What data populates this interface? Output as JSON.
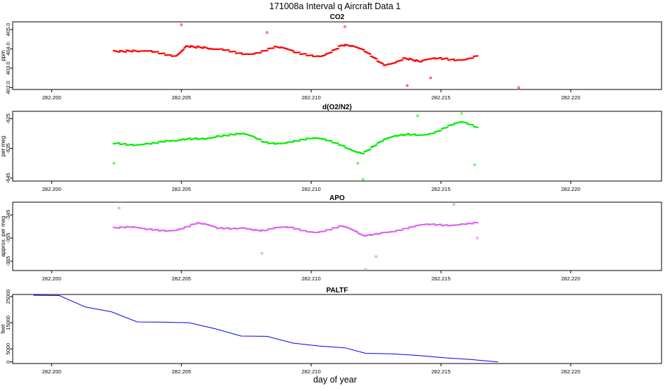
{
  "figure": {
    "title": "171008a   Interval q Aircraft Data 1",
    "xlabel": "day of year"
  },
  "chart_data": [
    {
      "id": "co2",
      "type": "scatter",
      "title": "CO2",
      "ylabel": "ppm",
      "color": "#ff0000",
      "xlim": [
        282.1985,
        282.2235
      ],
      "ylim": [
        401.9,
        405.4
      ],
      "xticks": [
        282.2,
        282.205,
        282.21,
        282.215,
        282.22
      ],
      "xtick_labels": [
        "282.200",
        "282.205",
        "282.210",
        "282.215",
        "282.220"
      ],
      "yticks": [
        402.0,
        403.0,
        404.0,
        405.0
      ],
      "ytick_labels": [
        "402.0",
        "403.0",
        "404.0",
        "405.0"
      ],
      "series": {
        "name": "CO2 (ppm)",
        "x_start": 282.2024,
        "x_end": 282.2164,
        "n_points": 340,
        "level_profile": [
          [
            282.2024,
            404.05
          ],
          [
            282.2034,
            403.7
          ],
          [
            282.2048,
            403.8
          ],
          [
            282.2052,
            404.3
          ],
          [
            282.2062,
            403.8
          ],
          [
            282.2076,
            403.9
          ],
          [
            282.2086,
            404.0
          ],
          [
            282.2094,
            403.7
          ],
          [
            282.2104,
            403.8
          ],
          [
            282.2112,
            404.15
          ],
          [
            282.212,
            403.8
          ],
          [
            282.2128,
            403.3
          ],
          [
            282.2136,
            403.6
          ],
          [
            282.2142,
            403.2
          ],
          [
            282.2152,
            403.5
          ],
          [
            282.2164,
            403.7
          ]
        ],
        "scatter": 0.42,
        "outliers": [
          {
            "x": 282.2137,
            "y": 402.1
          },
          {
            "x": 282.2113,
            "y": 405.15
          },
          {
            "x": 282.205,
            "y": 405.25
          },
          {
            "x": 282.2083,
            "y": 404.85
          },
          {
            "x": 282.2146,
            "y": 402.5
          },
          {
            "x": 282.218,
            "y": 402.0
          }
        ]
      }
    },
    {
      "id": "do2n2",
      "type": "scatter",
      "title": "d(O2/N2)",
      "ylabel": "per meg",
      "color": "#00ee00",
      "xlim": [
        282.1985,
        282.2235
      ],
      "ylim": [
        -646,
        -622.5
      ],
      "xticks": [
        282.2,
        282.205,
        282.21,
        282.215,
        282.22
      ],
      "xtick_labels": [
        "282.200",
        "282.205",
        "282.210",
        "282.215",
        "282.220"
      ],
      "yticks": [
        -645,
        -635,
        -625
      ],
      "ytick_labels": [
        "-645",
        "-635",
        "-625"
      ],
      "series": {
        "name": "d(O2/N2) (per meg)",
        "x_start": 282.2024,
        "x_end": 282.2164,
        "n_points": 340,
        "level_profile": [
          [
            282.2024,
            -634.0
          ],
          [
            282.2036,
            -632.5
          ],
          [
            282.2048,
            -633.5
          ],
          [
            282.2056,
            -631.5
          ],
          [
            282.2064,
            -630.0
          ],
          [
            282.2074,
            -631.0
          ],
          [
            282.2082,
            -633.0
          ],
          [
            282.2092,
            -632.0
          ],
          [
            282.2102,
            -632.5
          ],
          [
            282.2112,
            -633.5
          ],
          [
            282.212,
            -636.0
          ],
          [
            282.2128,
            -633.0
          ],
          [
            282.2138,
            -630.0
          ],
          [
            282.2148,
            -629.0
          ],
          [
            282.2158,
            -627.0
          ],
          [
            282.2164,
            -628.0
          ]
        ],
        "scatter": 2.4,
        "outliers": [
          {
            "x": 282.212,
            "y": -645.5
          },
          {
            "x": 282.2118,
            "y": -640.0
          },
          {
            "x": 282.2163,
            "y": -640.5
          },
          {
            "x": 282.2024,
            "y": -640.0
          },
          {
            "x": 282.2141,
            "y": -624.0
          },
          {
            "x": 282.2158,
            "y": -623.2
          }
        ]
      }
    },
    {
      "id": "apo",
      "type": "scatter",
      "title": "APO",
      "ylabel": "approx. per meg",
      "color": "#dd66ee",
      "xlim": [
        282.1985,
        282.2235
      ],
      "ylim": [
        -369,
        -339.5
      ],
      "xticks": [
        282.2,
        282.205,
        282.21,
        282.215,
        282.22
      ],
      "xtick_labels": [
        "282.200",
        "282.205",
        "282.210",
        "282.215",
        "282.220"
      ],
      "yticks": [
        -365,
        -355,
        -345
      ],
      "ytick_labels": [
        "-365",
        "-355",
        "-345"
      ],
      "series": {
        "name": "APO (approx. per meg)",
        "x_start": 282.2024,
        "x_end": 282.2164,
        "n_points": 340,
        "level_profile": [
          [
            282.2024,
            -350.0
          ],
          [
            282.2036,
            -352.0
          ],
          [
            282.2048,
            -350.5
          ],
          [
            282.2056,
            -349.0
          ],
          [
            282.2064,
            -351.5
          ],
          [
            282.2074,
            -349.5
          ],
          [
            282.2082,
            -352.0
          ],
          [
            282.2092,
            -351.0
          ],
          [
            282.2102,
            -351.5
          ],
          [
            282.2112,
            -350.5
          ],
          [
            282.212,
            -354.5
          ],
          [
            282.2128,
            -351.5
          ],
          [
            282.2138,
            -351.0
          ],
          [
            282.2148,
            -349.5
          ],
          [
            282.2158,
            -348.0
          ],
          [
            282.2164,
            -348.5
          ]
        ],
        "scatter": 2.6,
        "outliers": [
          {
            "x": 282.2121,
            "y": -368.5
          },
          {
            "x": 282.2125,
            "y": -363.0
          },
          {
            "x": 282.2081,
            "y": -361.5
          },
          {
            "x": 282.2026,
            "y": -342.0
          },
          {
            "x": 282.2155,
            "y": -340.5
          },
          {
            "x": 282.2164,
            "y": -355.0
          }
        ]
      }
    },
    {
      "id": "paltf",
      "type": "line",
      "title": "PALTF",
      "ylabel": "feet",
      "color": "#0000ee",
      "xlim": [
        282.1985,
        282.2235
      ],
      "ylim": [
        -600,
        25800
      ],
      "xticks": [
        282.2,
        282.205,
        282.21,
        282.215,
        282.22
      ],
      "xtick_labels": [
        "282.200",
        "282.205",
        "282.210",
        "282.215",
        "282.220"
      ],
      "yticks": [
        0,
        5000,
        15000,
        25000
      ],
      "ytick_labels": [
        "0",
        "5000",
        "15000",
        "25000"
      ],
      "series": {
        "name": "PALTF (feet)",
        "x": [
          282.1993,
          282.2003,
          282.2013,
          282.2023,
          282.2033,
          282.2043,
          282.2053,
          282.2063,
          282.2073,
          282.2083,
          282.2093,
          282.2103,
          282.2113,
          282.2121,
          282.2131,
          282.2141,
          282.2151,
          282.2161,
          282.2172
        ],
        "y": [
          25500,
          25400,
          21000,
          19200,
          15300,
          15200,
          15000,
          12700,
          9900,
          9800,
          7200,
          6100,
          5400,
          3300,
          3100,
          2500,
          1600,
          1000,
          0
        ]
      }
    }
  ]
}
